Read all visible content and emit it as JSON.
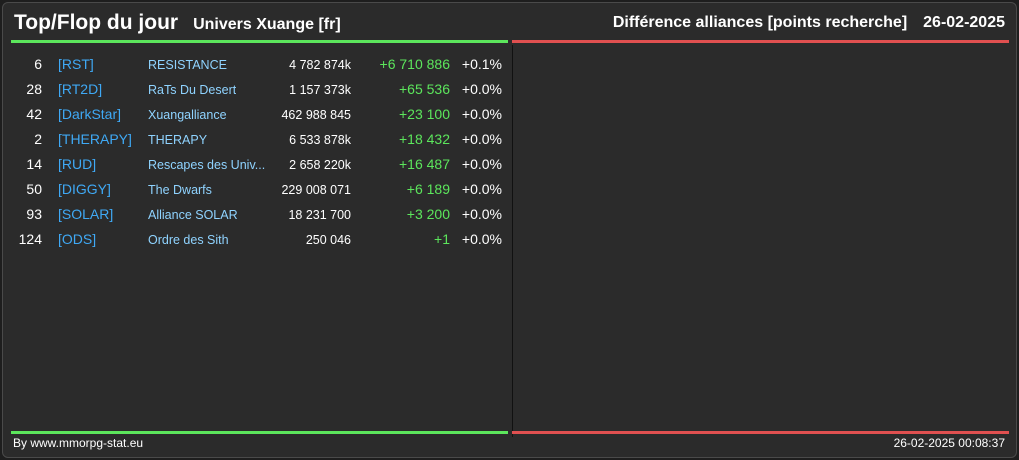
{
  "header": {
    "title": "Top/Flop du jour",
    "universe": "Univers Xuange [fr]",
    "category": "Différence alliances [points recherche]",
    "date": "26-02-2025"
  },
  "colors": {
    "top_accent": "#5ce65c",
    "flop_accent": "#e05050",
    "tag": "#3fa9f5",
    "name": "#8fd3ff"
  },
  "top_rows": [
    {
      "rank": "6",
      "tag": "[RST]",
      "name": "RESISTANCE",
      "points": "4 782 874k",
      "diff": "+6 710 886",
      "pct": "+0.1%"
    },
    {
      "rank": "28",
      "tag": "[RT2D]",
      "name": "RaTs Du Desert",
      "points": "1 157 373k",
      "diff": "+65 536",
      "pct": "+0.0%"
    },
    {
      "rank": "42",
      "tag": "[DarkStar]",
      "name": "Xuangalliance",
      "points": "462 988 845",
      "diff": "+23 100",
      "pct": "+0.0%"
    },
    {
      "rank": "2",
      "tag": "[THERAPY]",
      "name": "THERAPY",
      "points": "6 533 878k",
      "diff": "+18 432",
      "pct": "+0.0%"
    },
    {
      "rank": "14",
      "tag": "[RUD]",
      "name": "Rescapes des Univ...",
      "points": "2 658 220k",
      "diff": "+16 487",
      "pct": "+0.0%"
    },
    {
      "rank": "50",
      "tag": "[DIGGY]",
      "name": "The Dwarfs",
      "points": "229 008 071",
      "diff": "+6 189",
      "pct": "+0.0%"
    },
    {
      "rank": "93",
      "tag": "[SOLAR]",
      "name": "Alliance SOLAR",
      "points": "18 231 700",
      "diff": "+3 200",
      "pct": "+0.0%"
    },
    {
      "rank": "124",
      "tag": "[ODS]",
      "name": "Ordre des Sith",
      "points": "250 046",
      "diff": "+1",
      "pct": "+0.0%"
    }
  ],
  "footer": {
    "credit": "By www.mmorpg-stat.eu",
    "timestamp": "26-02-2025 00:08:37"
  }
}
